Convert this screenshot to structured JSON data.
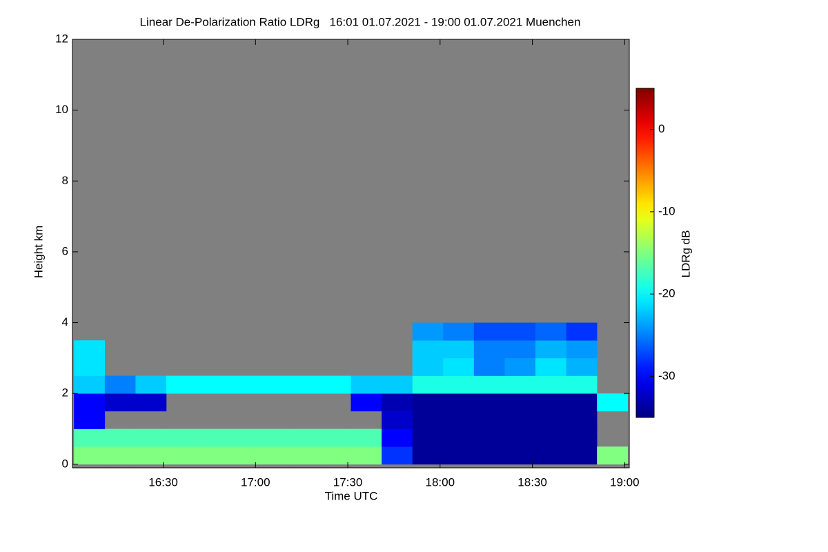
{
  "chart_data": {
    "type": "heatmap",
    "title": "Linear De-Polarization Ratio LDRg   16:01 01.07.2021 - 19:00 01.07.2021 Muenchen",
    "x_label": "Time UTC",
    "y_label": "Height km",
    "colorbar_label": "LDRg dB",
    "colormap": "jet",
    "background": "#808080",
    "x": [
      961,
      971,
      981,
      991,
      1001,
      1011,
      1021,
      1031,
      1041,
      1051,
      1061,
      1071,
      1081,
      1091,
      1101,
      1111,
      1121,
      1131,
      1141
    ],
    "y": [
      0,
      0.5,
      1,
      1.5,
      2,
      2.5,
      3,
      3.5,
      4
    ],
    "values": [
      [
        -15,
        -15,
        -15,
        -15,
        -15,
        -15,
        -15,
        -15,
        -15,
        -15,
        -28,
        -34,
        -34,
        -34,
        -34,
        -34,
        -34,
        -15
      ],
      [
        -17,
        -17,
        -17,
        -17,
        -17,
        -17,
        -17,
        -17,
        -17,
        -17,
        -30,
        -34,
        -34,
        -34,
        -34,
        -34,
        -34,
        null
      ],
      [
        -30,
        null,
        null,
        null,
        null,
        null,
        null,
        null,
        null,
        null,
        -32,
        -34,
        -34,
        -34,
        -34,
        -34,
        -34,
        null
      ],
      [
        -30,
        -32,
        -32,
        null,
        null,
        null,
        null,
        null,
        null,
        -30,
        -33,
        -34,
        -34,
        -34,
        -34,
        -34,
        -34,
        -20
      ],
      [
        -22,
        -25,
        -22,
        -20,
        -20,
        -20,
        -20,
        -20,
        -20,
        -22,
        -22,
        -19,
        -19,
        -19,
        -19,
        -19,
        -19,
        null
      ],
      [
        -21,
        null,
        null,
        null,
        null,
        null,
        null,
        null,
        null,
        null,
        null,
        -22,
        -21,
        -25,
        -24,
        -21,
        -23,
        null
      ],
      [
        -21,
        null,
        null,
        null,
        null,
        null,
        null,
        null,
        null,
        null,
        null,
        -22,
        -22,
        -25,
        -25,
        -23,
        -24,
        null
      ],
      [
        null,
        null,
        null,
        null,
        null,
        null,
        null,
        null,
        null,
        null,
        null,
        -24,
        -25,
        -27,
        -27,
        -26,
        -28,
        null
      ]
    ],
    "xlim": [
      960.5,
      1141.5
    ],
    "xticks": [
      {
        "value": 990,
        "label": "16:30"
      },
      {
        "value": 1020,
        "label": "17:00"
      },
      {
        "value": 1050,
        "label": "17:30"
      },
      {
        "value": 1080,
        "label": "18:00"
      },
      {
        "value": 1110,
        "label": "18:30"
      },
      {
        "value": 1140,
        "label": "19:00"
      }
    ],
    "ylim": [
      -0.1,
      12
    ],
    "yticks": [
      0,
      2,
      4,
      6,
      8,
      10,
      12
    ],
    "clim": [
      -35,
      5
    ],
    "cticks": [
      0,
      -10,
      -20,
      -30
    ]
  }
}
